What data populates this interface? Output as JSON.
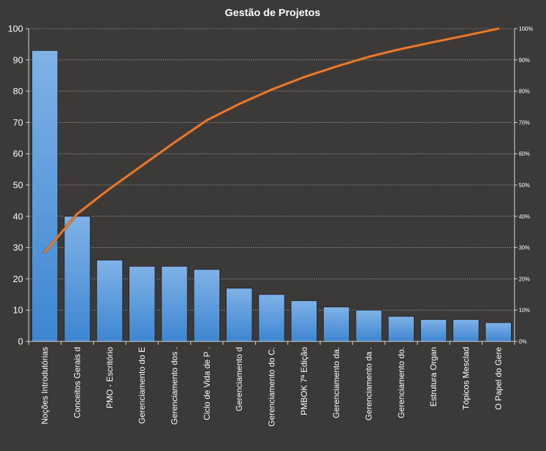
{
  "chart_data": {
    "type": "bar",
    "title": "Gestão de Projetos",
    "categories": [
      "Noções Introdutórias",
      "Conceitos Gerais d",
      "PMO - Escritório",
      "Gerenciamento do E",
      "Gerenciamento dos .",
      "Ciclo de Vida de P .",
      "Gerenciamento d",
      "Gerenciamento do C.",
      "PMBOK 7ª Edição",
      "Gerenciamento da.",
      "Gerenciamento da .",
      "Gerenciamento do.",
      "Estrutura Organ",
      "Tópicos Mesclad",
      "O Papel do Gere"
    ],
    "series": [
      {
        "type": "bar",
        "values": [
          93,
          40,
          26,
          24,
          24,
          23,
          17,
          15,
          13,
          11,
          10,
          8,
          7,
          7,
          6
        ]
      },
      {
        "type": "line",
        "axis": "right",
        "values": [
          28.5,
          40.8,
          48.8,
          56.2,
          63.6,
          70.7,
          75.9,
          80.5,
          84.5,
          87.9,
          91.0,
          93.5,
          95.7,
          97.8,
          100
        ]
      }
    ],
    "ylim": [
      0,
      100
    ],
    "yticks": [
      "0",
      "10",
      "20",
      "30",
      "40",
      "50",
      "60",
      "70",
      "80",
      "90",
      "100"
    ],
    "y2lim": [
      0,
      100
    ],
    "y2ticks": [
      "0%",
      "10%",
      "20%",
      "30%",
      "40%",
      "50%",
      "60%",
      "70%",
      "80%",
      "90%",
      "100%"
    ],
    "grid": true,
    "colors": {
      "bar": "#4a90d9",
      "line": "#ed7d31",
      "background": "#3b3a39",
      "text": "#ffffff"
    }
  }
}
